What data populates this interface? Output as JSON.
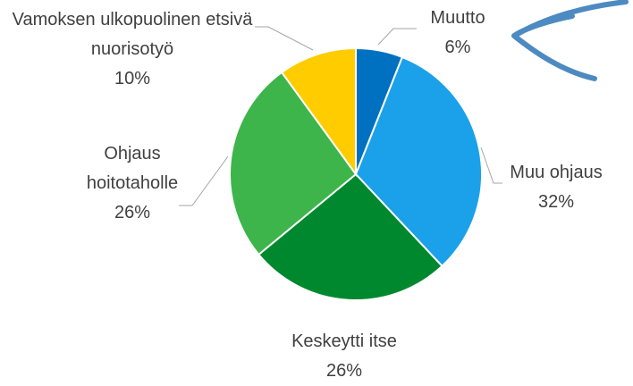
{
  "chart_data": {
    "type": "pie",
    "categories": [
      "Muutto",
      "Muu ohjaus",
      "Keskeytti itse",
      "Ohjaus hoitotaholle",
      "Vamoksen ulkopuolinen etsivä nuorisotyö"
    ],
    "values": [
      6,
      32,
      26,
      26,
      10
    ],
    "value_labels": [
      "6%",
      "32%",
      "26%",
      "26%",
      "10%"
    ],
    "colors": [
      "#0070c0",
      "#1ba1e9",
      "#00882f",
      "#3db54b",
      "#ffcc00"
    ]
  }
}
